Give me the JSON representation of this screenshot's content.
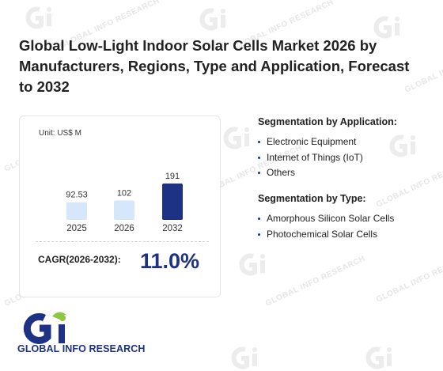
{
  "title": "Global Low-Light Indoor Solar Cells Market 2026 by Manufacturers, Regions, Type and Application, Forecast to 2032",
  "watermark_text": "GLOBAL INFO RESEARCH",
  "card": {
    "unit_label": "Unit: US$ M",
    "cagr_label": "CAGR(2026-2032):",
    "cagr_value": "11.0%"
  },
  "chart_data": {
    "type": "bar",
    "categories": [
      "2025",
      "2026",
      "2032"
    ],
    "values": [
      92.53,
      102,
      191
    ],
    "value_labels": [
      "92.53",
      "102",
      "191"
    ],
    "colors": [
      "#d6e6fb",
      "#d6e6fb",
      "#1d3185"
    ],
    "xlabel": "",
    "ylabel": "",
    "grid": false
  },
  "segments": {
    "application": {
      "title": "Segmentation by Application:",
      "items": [
        "Electronic Equipment",
        "Internet of Things (IoT)",
        "Others"
      ]
    },
    "type": {
      "title": "Segmentation by Type:",
      "items": [
        "Amorphous Silicon Solar Cells",
        "Photochemical Solar Cells"
      ]
    }
  },
  "logo": {
    "text": "GLOBAL INFO RESEARCH",
    "primary_color": "#1d3185",
    "accent_color": "#8dc63f"
  }
}
